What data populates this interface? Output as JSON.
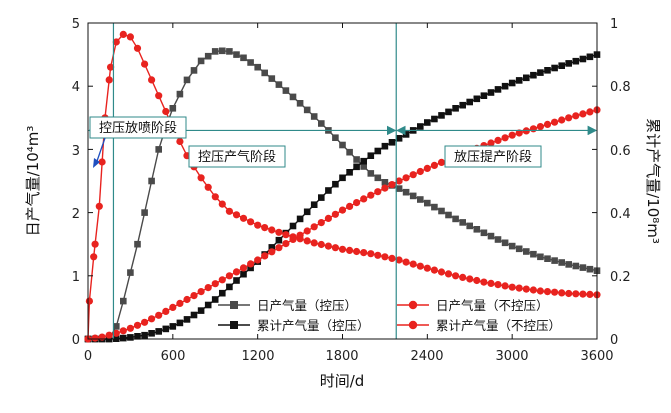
{
  "chart_data": {
    "type": "line",
    "xlabel": "时间/d",
    "ylabel_left": "日产气量/10⁴m³",
    "ylabel_right": "累计产气量/10⁸m³",
    "xlim": [
      0,
      3600
    ],
    "ylim_left": [
      0,
      5
    ],
    "ylim_right": [
      0,
      1
    ],
    "x_ticks": [
      0,
      600,
      1200,
      1800,
      2400,
      3000,
      3600
    ],
    "x_tick_labels": [
      "0",
      "600",
      "1200",
      "1800",
      "2400",
      "3000",
      "3600"
    ],
    "y_left_ticks": [
      0,
      1,
      2,
      3,
      4,
      5
    ],
    "y_left_tick_labels": [
      "0",
      "1",
      "2",
      "3",
      "4",
      "5"
    ],
    "y_right_ticks": [
      0,
      0.2,
      0.4,
      0.6,
      0.8,
      1.0
    ],
    "y_right_tick_labels": [
      "0",
      "0.2",
      "0.4",
      "0.6",
      "0.8",
      "1"
    ],
    "stages": {
      "dividers": [
        180,
        2180
      ],
      "labels": [
        "控压放喷阶段",
        "控压产气阶段",
        "放压提产阶段"
      ]
    },
    "legend": [
      "日产气量（控压）",
      "累计产气量（控压）",
      "日产气量（不控压）",
      "累计产气量（不控压）"
    ],
    "colors": {
      "controlled": "#4a4a4a",
      "cumulative_controlled": "#111111",
      "uncontrolled": "#e8231f",
      "stage": "#2f8a8a"
    },
    "series": [
      {
        "name": "日产气量（控压）",
        "axis": "left",
        "x": [
          0,
          150,
          200,
          250,
          300,
          350,
          400,
          450,
          500,
          550,
          600,
          700,
          800,
          900,
          950,
          1000,
          1100,
          1200,
          1300,
          1400,
          1500,
          1600,
          1700,
          1800,
          1900,
          2000,
          2100,
          2200,
          2400,
          2600,
          2800,
          3000,
          3200,
          3400,
          3600
        ],
        "values": [
          0,
          0,
          0.2,
          0.6,
          1.05,
          1.5,
          2.0,
          2.5,
          3.0,
          3.35,
          3.65,
          4.1,
          4.4,
          4.55,
          4.56,
          4.55,
          4.45,
          4.3,
          4.12,
          3.93,
          3.73,
          3.52,
          3.3,
          3.07,
          2.84,
          2.62,
          2.48,
          2.38,
          2.15,
          1.9,
          1.68,
          1.47,
          1.3,
          1.18,
          1.08
        ]
      },
      {
        "name": "累计产气量（控压）",
        "axis": "right",
        "x": [
          0,
          150,
          200,
          300,
          400,
          500,
          600,
          700,
          800,
          900,
          1000,
          1100,
          1200,
          1300,
          1400,
          1500,
          1600,
          1700,
          1800,
          1900,
          2000,
          2100,
          2200,
          2400,
          2600,
          2800,
          3000,
          3200,
          3400,
          3600
        ],
        "values": [
          0,
          0,
          0.001,
          0.005,
          0.012,
          0.024,
          0.04,
          0.062,
          0.09,
          0.125,
          0.165,
          0.205,
          0.245,
          0.29,
          0.335,
          0.38,
          0.425,
          0.47,
          0.51,
          0.545,
          0.58,
          0.61,
          0.635,
          0.685,
          0.73,
          0.77,
          0.81,
          0.843,
          0.872,
          0.9
        ]
      },
      {
        "name": "日产气量（不控压）",
        "axis": "left",
        "x": [
          0,
          10,
          40,
          80,
          120,
          160,
          200,
          250,
          300,
          350,
          400,
          500,
          600,
          700,
          800,
          900,
          1000,
          1200,
          1400,
          1600,
          1800,
          2000,
          2200,
          2400,
          2600,
          2800,
          3000,
          3200,
          3400,
          3600
        ],
        "values": [
          0,
          0.6,
          1.3,
          2.1,
          3.5,
          4.3,
          4.7,
          4.82,
          4.78,
          4.6,
          4.35,
          3.85,
          3.35,
          2.9,
          2.55,
          2.25,
          2.02,
          1.8,
          1.65,
          1.52,
          1.42,
          1.35,
          1.25,
          1.12,
          1.0,
          0.9,
          0.82,
          0.76,
          0.72,
          0.7
        ]
      },
      {
        "name": "累计产气量（不控压）",
        "axis": "right",
        "x": [
          0,
          100,
          200,
          300,
          400,
          500,
          600,
          800,
          1000,
          1200,
          1400,
          1600,
          1800,
          2000,
          2200,
          2400,
          2600,
          2800,
          3000,
          3200,
          3400,
          3600
        ],
        "values": [
          0,
          0.006,
          0.018,
          0.034,
          0.053,
          0.075,
          0.1,
          0.15,
          0.2,
          0.25,
          0.302,
          0.355,
          0.408,
          0.455,
          0.5,
          0.54,
          0.578,
          0.612,
          0.645,
          0.672,
          0.7,
          0.725
        ]
      }
    ]
  }
}
